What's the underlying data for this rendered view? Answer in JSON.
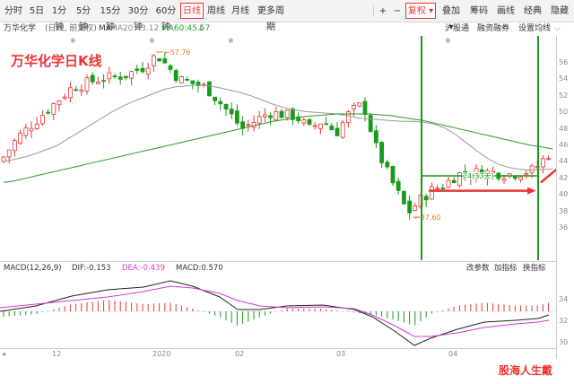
{
  "toolbar": {
    "periods": [
      "分时",
      "5日",
      "1分钟",
      "5分钟",
      "15分钟",
      "30分钟",
      "60分钟",
      "日线",
      "周线",
      "月线",
      "更多周期"
    ],
    "active_period": "日线",
    "zoom_in": "+",
    "zoom_out": "−",
    "adjust_label": "复权",
    "overlay_label": "叠加",
    "right_items": [
      "筹码",
      "画线",
      "经典",
      "隐藏"
    ]
  },
  "info": {
    "stock_name": "万华化学",
    "mode": "(日线, 前复权)",
    "ma_prefix": "MA",
    "ma20": "MA20:43.12",
    "ma60": "MA60:45.57",
    "links": [
      "沪股通",
      "融资融券",
      "设置均线"
    ]
  },
  "annotations": {
    "title": "万华化学日K线",
    "high": "57.76",
    "low": "37.60",
    "count": "24(33天)"
  },
  "y_ticks": [
    "56",
    "54",
    "52",
    "50",
    "48",
    "46",
    "44",
    "42",
    "40",
    "38",
    "36",
    "34",
    "32",
    "30"
  ],
  "macd": {
    "label": "MACD(12,26,9)",
    "dif": "DIF:-0.153",
    "dea": "DEA:-0.439",
    "macd": "MACD:0.570",
    "actions": [
      "改参数",
      "加指标",
      "换指标"
    ]
  },
  "x_ticks": [
    "12",
    "2020",
    "02",
    "03",
    "04"
  ],
  "watermark": "股海人生戴",
  "colors": {
    "up": "#e33",
    "down": "#1a9a1a",
    "ma20": "#999",
    "ma60": "#2a9a2a",
    "dea": "#d13bd1"
  },
  "chart_data": {
    "type": "candlestick",
    "dates_note": "",
    "ma20_series": [
      44,
      44.3,
      44.6,
      45,
      45.5,
      46,
      46.8,
      47.6,
      48.4,
      49.2,
      50,
      50.7,
      51.3,
      51.8,
      52.3,
      52.8,
      53.1,
      53.2,
      53.3,
      53.2,
      53,
      52.7,
      52.4,
      52,
      51.5,
      51,
      50.6,
      50.3,
      50.1,
      50,
      49.9,
      49.8,
      49.6,
      49.3,
      49.2,
      49.1,
      49,
      48.9,
      48.9,
      48.8,
      48.6,
      48.1,
      47.3,
      46.3,
      45.3,
      44.4,
      43.7,
      43.3,
      43.1,
      43,
      43.1,
      43.12
    ],
    "ma60_series": [
      41.5,
      41.7,
      42,
      42.3,
      42.6,
      42.9,
      43.2,
      43.5,
      43.8,
      44.1,
      44.4,
      44.7,
      45,
      45.3,
      45.6,
      45.9,
      46.2,
      46.5,
      46.8,
      47.1,
      47.4,
      47.7,
      48,
      48.3,
      48.6,
      48.9,
      49.1,
      49.3,
      49.5,
      49.6,
      49.7,
      49.8,
      49.8,
      49.8,
      49.8,
      49.7,
      49.6,
      49.4,
      49.2,
      49,
      48.7,
      48.4,
      48.1,
      47.8,
      47.5,
      47.2,
      46.9,
      46.6,
      46.3,
      46,
      45.8,
      45.57
    ]
  }
}
